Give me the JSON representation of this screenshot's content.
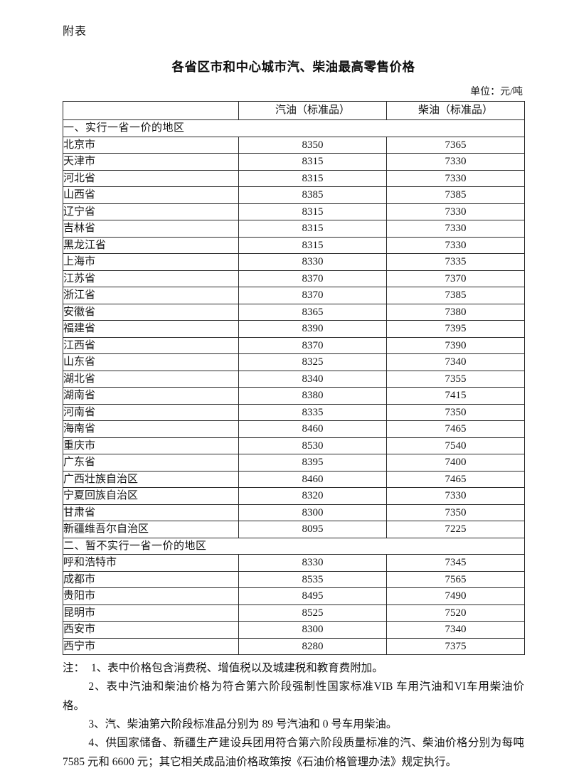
{
  "page": {
    "appendix_label": "附表",
    "title": "各省区市和中心城市汽、柴油最高零售价格",
    "unit_label": "单位：元/吨"
  },
  "table": {
    "columns": [
      "",
      "汽油（标准品）",
      "柴油（标准品）"
    ],
    "sections": [
      {
        "heading": "一、实行一省一价的地区",
        "rows": [
          {
            "region": "北京市",
            "gasoline": "8350",
            "diesel": "7365"
          },
          {
            "region": "天津市",
            "gasoline": "8315",
            "diesel": "7330"
          },
          {
            "region": "河北省",
            "gasoline": "8315",
            "diesel": "7330"
          },
          {
            "region": "山西省",
            "gasoline": "8385",
            "diesel": "7385"
          },
          {
            "region": "辽宁省",
            "gasoline": "8315",
            "diesel": "7330"
          },
          {
            "region": "吉林省",
            "gasoline": "8315",
            "diesel": "7330"
          },
          {
            "region": "黑龙江省",
            "gasoline": "8315",
            "diesel": "7330"
          },
          {
            "region": "上海市",
            "gasoline": "8330",
            "diesel": "7335"
          },
          {
            "region": "江苏省",
            "gasoline": "8370",
            "diesel": "7370"
          },
          {
            "region": "浙江省",
            "gasoline": "8370",
            "diesel": "7385"
          },
          {
            "region": "安徽省",
            "gasoline": "8365",
            "diesel": "7380"
          },
          {
            "region": "福建省",
            "gasoline": "8390",
            "diesel": "7395"
          },
          {
            "region": "江西省",
            "gasoline": "8370",
            "diesel": "7390"
          },
          {
            "region": "山东省",
            "gasoline": "8325",
            "diesel": "7340"
          },
          {
            "region": "湖北省",
            "gasoline": "8340",
            "diesel": "7355"
          },
          {
            "region": "湖南省",
            "gasoline": "8380",
            "diesel": "7415"
          },
          {
            "region": "河南省",
            "gasoline": "8335",
            "diesel": "7350"
          },
          {
            "region": "海南省",
            "gasoline": "8460",
            "diesel": "7465"
          },
          {
            "region": "重庆市",
            "gasoline": "8530",
            "diesel": "7540"
          },
          {
            "region": "广东省",
            "gasoline": "8395",
            "diesel": "7400"
          },
          {
            "region": "广西壮族自治区",
            "gasoline": "8460",
            "diesel": "7465"
          },
          {
            "region": "宁夏回族自治区",
            "gasoline": "8320",
            "diesel": "7330"
          },
          {
            "region": "甘肃省",
            "gasoline": "8300",
            "diesel": "7350"
          },
          {
            "region": "新疆维吾尔自治区",
            "gasoline": "8095",
            "diesel": "7225"
          }
        ]
      },
      {
        "heading": "二、暂不实行一省一价的地区",
        "rows": [
          {
            "region": "呼和浩特市",
            "gasoline": "8330",
            "diesel": "7345"
          },
          {
            "region": "成都市",
            "gasoline": "8535",
            "diesel": "7565"
          },
          {
            "region": "贵阳市",
            "gasoline": "8495",
            "diesel": "7490"
          },
          {
            "region": "昆明市",
            "gasoline": "8525",
            "diesel": "7520"
          },
          {
            "region": "西安市",
            "gasoline": "8300",
            "diesel": "7340"
          },
          {
            "region": "西宁市",
            "gasoline": "8280",
            "diesel": "7375"
          }
        ]
      }
    ]
  },
  "notes": {
    "label": "注：",
    "items": [
      "1、表中价格包含消费税、增值税以及城建税和教育费附加。",
      "2、表中汽油和柴油价格为符合第六阶段强制性国家标准VIB 车用汽油和VI车用柴油价格。",
      "3、汽、柴油第六阶段标准品分别为 89 号汽油和 0 号车用柴油。",
      "4、供国家储备、新疆生产建设兵团用符合第六阶段质量标准的汽、柴油价格分别为每吨 7585 元和 6600 元；其它相关成品油价格政策按《石油价格管理办法》规定执行。"
    ]
  }
}
